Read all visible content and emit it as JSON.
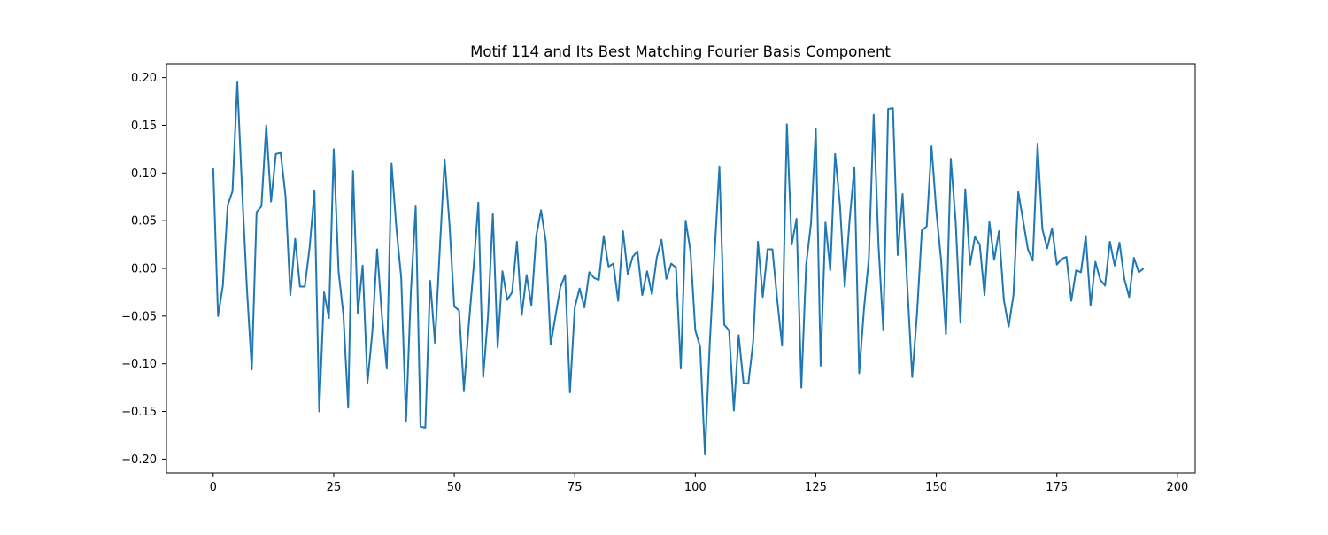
{
  "chart_data": {
    "type": "line",
    "title": "Motif 114 and Its Best Matching Fourier Basis Component",
    "xlabel": "",
    "ylabel": "",
    "xlim": [
      -9.7,
      203.7
    ],
    "ylim": [
      -0.2145,
      0.2145
    ],
    "xticks": [
      0,
      25,
      50,
      75,
      100,
      125,
      150,
      175,
      200
    ],
    "yticks": [
      -0.2,
      -0.15,
      -0.1,
      -0.05,
      0.0,
      0.05,
      0.1,
      0.15,
      0.2
    ],
    "xtick_labels": [
      "0",
      "25",
      "50",
      "75",
      "100",
      "125",
      "150",
      "175",
      "200"
    ],
    "ytick_labels": [
      "−0.20",
      "−0.15",
      "−0.10",
      "−0.05",
      "0.00",
      "0.05",
      "0.10",
      "0.15",
      "0.20"
    ],
    "grid": false,
    "legend": "none",
    "series": [
      {
        "color": "#1f77b4",
        "x_start": 0,
        "x_step": 1,
        "values": [
          0.105,
          -0.05,
          -0.018,
          0.066,
          0.081,
          0.195,
          0.081,
          -0.022,
          -0.106,
          0.059,
          0.065,
          0.15,
          0.07,
          0.12,
          0.121,
          0.076,
          -0.028,
          0.031,
          -0.019,
          -0.019,
          0.022,
          0.081,
          -0.15,
          -0.025,
          -0.052,
          0.125,
          -0.003,
          -0.048,
          -0.146,
          0.102,
          -0.047,
          0.003,
          -0.12,
          -0.067,
          0.02,
          -0.05,
          -0.105,
          0.11,
          0.042,
          -0.01,
          -0.16,
          -0.025,
          0.065,
          -0.166,
          -0.167,
          -0.013,
          -0.078,
          0.02,
          0.114,
          0.047,
          -0.04,
          -0.044,
          -0.128,
          -0.06,
          0.0,
          0.069,
          -0.114,
          -0.05,
          0.057,
          -0.083,
          -0.003,
          -0.033,
          -0.025,
          0.028,
          -0.049,
          -0.007,
          -0.039,
          0.034,
          0.061,
          0.028,
          -0.08,
          -0.05,
          -0.02,
          -0.007,
          -0.13,
          -0.041,
          -0.021,
          -0.041,
          -0.004,
          -0.01,
          -0.012,
          0.034,
          0.002,
          0.005,
          -0.034,
          0.039,
          -0.006,
          0.012,
          0.018,
          -0.028,
          -0.003,
          -0.027,
          0.011,
          0.03,
          -0.011,
          0.005,
          0.001,
          -0.105,
          0.05,
          0.018,
          -0.065,
          -0.082,
          -0.195,
          -0.079,
          0.016,
          0.107,
          -0.059,
          -0.065,
          -0.149,
          -0.07,
          -0.12,
          -0.121,
          -0.077,
          0.028,
          -0.03,
          0.02,
          0.02,
          -0.033,
          -0.081,
          0.151,
          0.025,
          0.052,
          -0.125,
          0.004,
          0.047,
          0.146,
          -0.102,
          0.048,
          -0.002,
          0.12,
          0.067,
          -0.019,
          0.05,
          0.106,
          -0.11,
          -0.042,
          0.01,
          0.161,
          0.025,
          -0.065,
          0.167,
          0.168,
          0.014,
          0.078,
          -0.02,
          -0.114,
          -0.047,
          0.04,
          0.044,
          0.128,
          0.06,
          0.008,
          -0.069,
          0.115,
          0.05,
          -0.057,
          0.083,
          0.004,
          0.033,
          0.025,
          -0.028,
          0.049,
          0.009,
          0.039,
          -0.033,
          -0.061,
          -0.028,
          0.08,
          0.05,
          0.02,
          0.008,
          0.13,
          0.041,
          0.021,
          0.042,
          0.004,
          0.01,
          0.012,
          -0.034,
          -0.002,
          -0.004,
          0.034,
          -0.039,
          0.007,
          -0.012,
          -0.018,
          0.028,
          0.003,
          0.027,
          -0.011,
          -0.03,
          0.011,
          -0.004,
          0.0
        ]
      }
    ]
  }
}
